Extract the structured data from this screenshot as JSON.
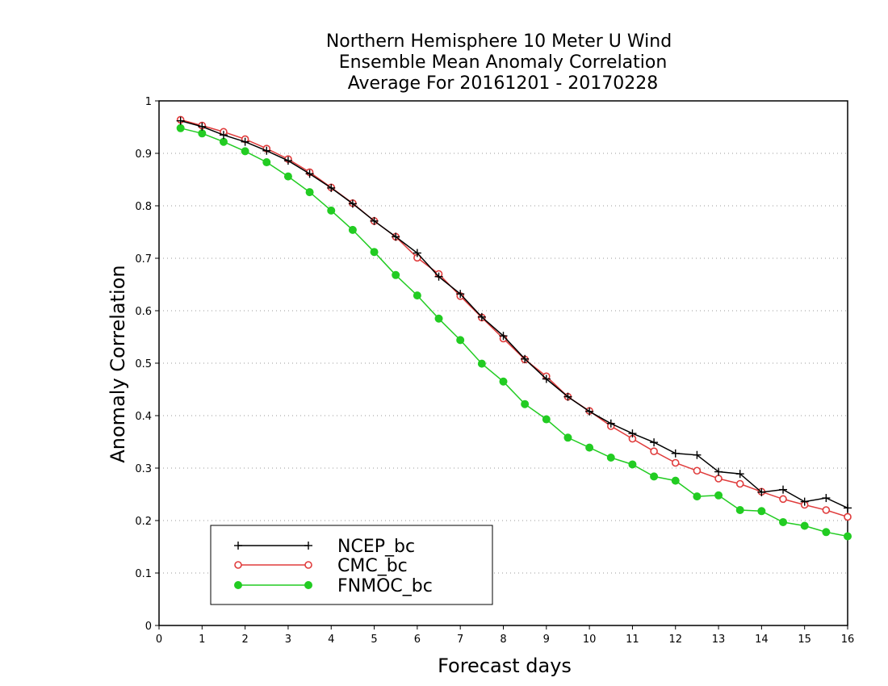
{
  "chart_data": {
    "type": "line",
    "title_lines": [
      "Northern Hemisphere 10 Meter U Wind",
      "Ensemble Mean Anomaly Correlation",
      "Average For 20161201 - 20170228"
    ],
    "xlabel": "Forecast days",
    "ylabel": "Anomaly Correlation",
    "xlim": [
      0,
      16
    ],
    "ylim": [
      0,
      1
    ],
    "xticks": [
      "0",
      "1",
      "2",
      "3",
      "4",
      "5",
      "6",
      "7",
      "8",
      "9",
      "10",
      "11",
      "12",
      "13",
      "14",
      "15",
      "16"
    ],
    "yticks": [
      "0",
      "0.1",
      "0.2",
      "0.3",
      "0.4",
      "0.5",
      "0.6",
      "0.7",
      "0.8",
      "0.9",
      "1"
    ],
    "grid": "horizontal-dotted",
    "legend_position": "bottom-left",
    "x": [
      0.5,
      1,
      1.5,
      2,
      2.5,
      3,
      3.5,
      4,
      4.5,
      5,
      5.5,
      6,
      6.5,
      7,
      7.5,
      8,
      8.5,
      9,
      9.5,
      10,
      10.5,
      11,
      11.5,
      12,
      12.5,
      13,
      13.5,
      14,
      14.5,
      15,
      15.5,
      16
    ],
    "series": [
      {
        "name": "NCEP_bc",
        "color": "#000000",
        "marker": "plus",
        "values": [
          0.962,
          0.951,
          0.935,
          0.922,
          0.905,
          0.886,
          0.861,
          0.834,
          0.804,
          0.771,
          0.741,
          0.71,
          0.665,
          0.632,
          0.588,
          0.552,
          0.508,
          0.47,
          0.436,
          0.408,
          0.385,
          0.366,
          0.349,
          0.328,
          0.325,
          0.293,
          0.289,
          0.254,
          0.259,
          0.236,
          0.243,
          0.224
        ]
      },
      {
        "name": "CMC_bc",
        "color": "#e03c3c",
        "marker": "open-circle",
        "values": [
          0.964,
          0.953,
          0.941,
          0.927,
          0.909,
          0.889,
          0.864,
          0.835,
          0.805,
          0.771,
          0.741,
          0.701,
          0.67,
          0.628,
          0.587,
          0.547,
          0.507,
          0.475,
          0.436,
          0.409,
          0.38,
          0.356,
          0.332,
          0.31,
          0.295,
          0.28,
          0.27,
          0.255,
          0.241,
          0.23,
          0.22,
          0.207
        ]
      },
      {
        "name": "FNMOC_bc",
        "color": "#22cc22",
        "marker": "filled-circle",
        "values": [
          0.948,
          0.938,
          0.922,
          0.904,
          0.883,
          0.856,
          0.826,
          0.791,
          0.754,
          0.712,
          0.668,
          0.629,
          0.585,
          0.544,
          0.499,
          0.465,
          0.422,
          0.393,
          0.358,
          0.339,
          0.32,
          0.307,
          0.284,
          0.276,
          0.246,
          0.248,
          0.22,
          0.218,
          0.197,
          0.19,
          0.178,
          0.17
        ]
      }
    ]
  }
}
